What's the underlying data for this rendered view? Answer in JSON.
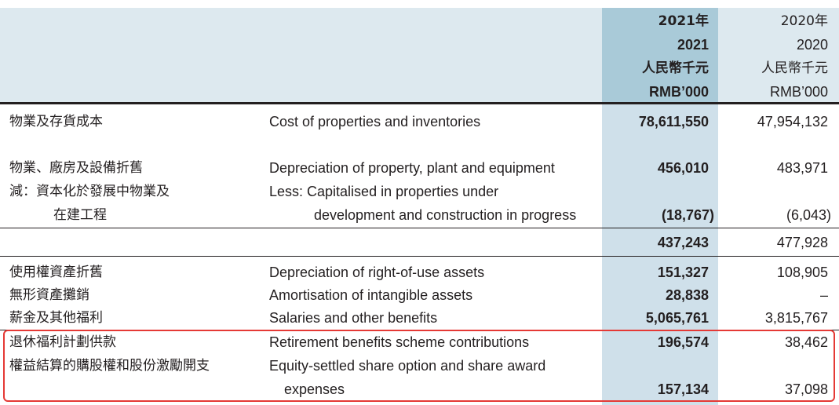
{
  "header": {
    "col2021": [
      "2021年",
      "2021",
      "人民幣千元",
      "RMB’000"
    ],
    "col2020": [
      "2020年",
      "2020",
      "人民幣千元",
      "RMB’000"
    ]
  },
  "rows": [
    {
      "zh": [
        "物業及存貨成本"
      ],
      "en": [
        "Cost of properties and inventories"
      ],
      "v2021": "78,611,550",
      "v2020": "47,954,132"
    },
    {
      "zh": [
        "物業、廠房及設備折舊"
      ],
      "en": [
        "Depreciation of property, plant and equipment"
      ],
      "v2021": "456,010",
      "v2020": "483,971"
    },
    {
      "zh": [
        "減：資本化於發展中物業及",
        "在建工程"
      ],
      "en": [
        "Less: Capitalised in properties under",
        "development and construction in progress"
      ],
      "v2021": "(18,767)",
      "v2020": "(6,043)"
    },
    {
      "zh": [],
      "en": [],
      "v2021": "437,243",
      "v2020": "477,928"
    },
    {
      "zh": [
        "使用權資產折舊"
      ],
      "en": [
        "Depreciation of right-of-use assets"
      ],
      "v2021": "151,327",
      "v2020": "108,905"
    },
    {
      "zh": [
        "無形資產攤銷"
      ],
      "en": [
        "Amortisation of intangible assets"
      ],
      "v2021": "28,838",
      "v2020": "–"
    },
    {
      "zh": [
        "薪金及其他福利"
      ],
      "en": [
        "Salaries and other benefits"
      ],
      "v2021": "5,065,761",
      "v2020": "3,815,767"
    },
    {
      "zh": [
        "退休福利計劃供款"
      ],
      "en": [
        "Retirement benefits scheme contributions"
      ],
      "v2021": "196,574",
      "v2020": "38,462"
    },
    {
      "zh": [
        "權益結算的購股權和股份激勵開支"
      ],
      "en": [
        "Equity-settled share option and share award",
        "expenses"
      ],
      "v2021": "157,134",
      "v2020": "37,098"
    }
  ],
  "colors": {
    "highlight_border": "#e53935",
    "header_bg": "#dde9ef",
    "current_year_header": "#a9cad8",
    "current_year_col": "#cfe0ea"
  }
}
